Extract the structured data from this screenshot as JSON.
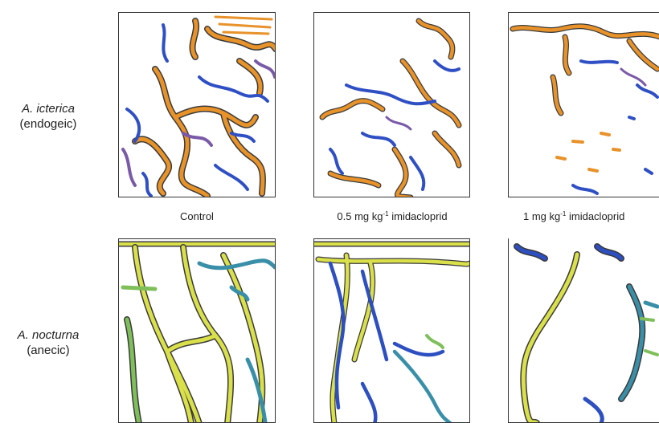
{
  "rows": [
    {
      "species": "A. icterica",
      "ecotype": "(endogeic)"
    },
    {
      "species": "A. nocturna",
      "ecotype": "(anecic)"
    }
  ],
  "columns": [
    {
      "pre": "Control",
      "sup": "",
      "post": ""
    },
    {
      "pre": "0.5 mg kg",
      "sup": "-1",
      "post": " imidacloprid"
    },
    {
      "pre": "1 mg kg",
      "sup": "-1",
      "post": " imidacloprid"
    }
  ],
  "colors": {
    "endogeic_orange": "#e8922a",
    "endogeic_blue": "#2f4fc4",
    "endogeic_purple": "#7a5aa8",
    "anecic_yellow": "#d9e04a",
    "anecic_green": "#7fbf5a",
    "anecic_teal": "#3a8fa8",
    "anecic_blue": "#2d4fc0",
    "outline": "#3a3a3a"
  }
}
